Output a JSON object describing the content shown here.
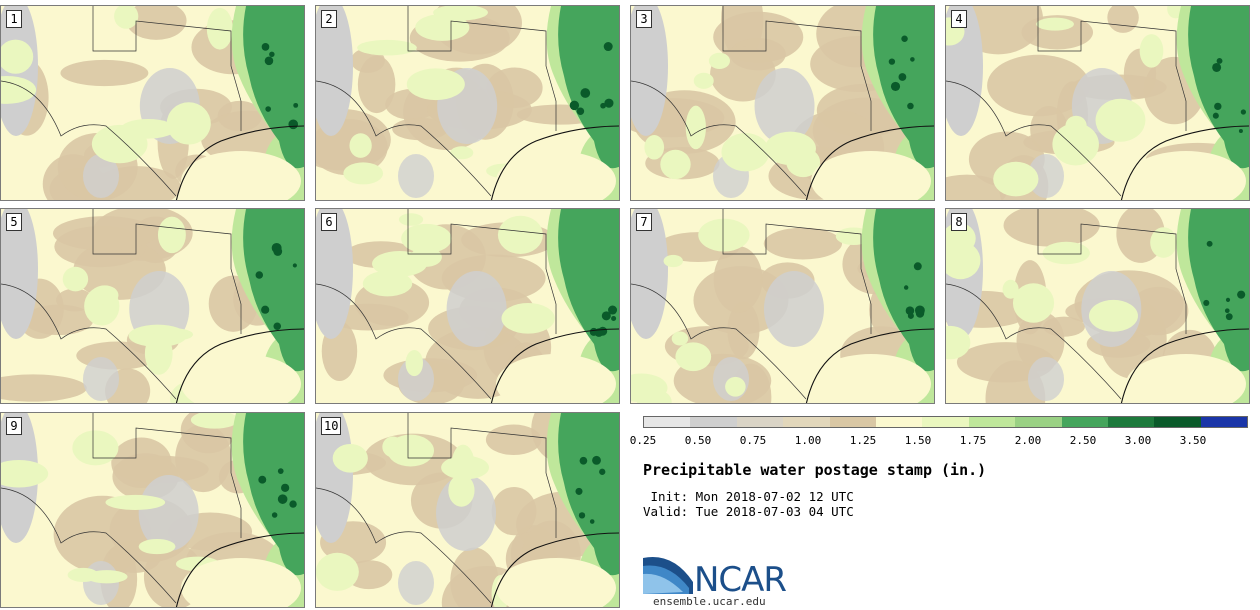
{
  "panels": [
    "1",
    "2",
    "3",
    "4",
    "5",
    "6",
    "7",
    "8",
    "9",
    "10"
  ],
  "colorbar": {
    "colors": [
      "#e6e6e6",
      "#cfcfcf",
      "#dad4c6",
      "#e2d7bb",
      "#d9c7a4",
      "#fbf8cf",
      "#eaf7bf",
      "#bfe79b",
      "#9ad184",
      "#45a55c",
      "#1d7a3c",
      "#0a5a2a",
      "#1a35a8"
    ],
    "ticks": [
      "0.25",
      "0.50",
      "0.75",
      "1.00",
      "1.25",
      "1.50",
      "1.75",
      "2.00",
      "2.50",
      "3.00",
      "3.50"
    ]
  },
  "title": "Precipitable water postage stamp (in.)",
  "init": " Init: Mon 2018-07-02 12 UTC",
  "valid": "Valid: Tue 2018-07-03 04 UTC",
  "logo_text": "NCAR",
  "site": "ensemble.ucar.edu"
}
